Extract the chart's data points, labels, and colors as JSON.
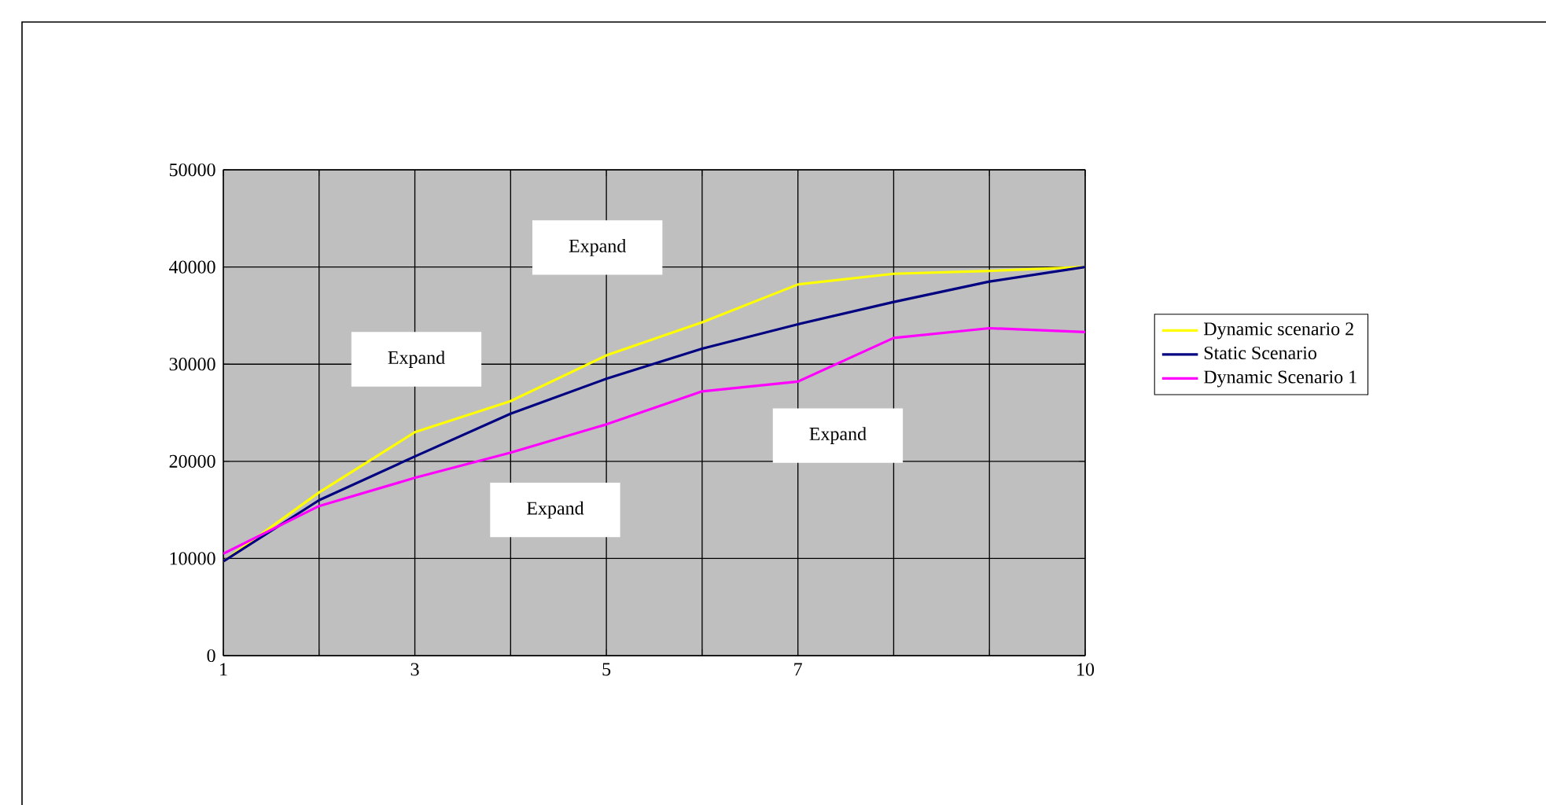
{
  "chart_data": {
    "type": "line",
    "x": [
      1,
      2,
      3,
      4,
      5,
      6,
      7,
      8,
      9,
      10
    ],
    "series": [
      {
        "name": "Dynamic scenario 2",
        "color": "#ffff00",
        "values": [
          9700,
          16800,
          23000,
          26200,
          30900,
          34300,
          38200,
          39300,
          39600,
          40000
        ]
      },
      {
        "name": "Static Scenario",
        "color": "#000080",
        "values": [
          9700,
          16000,
          20500,
          24900,
          28500,
          31600,
          34100,
          36400,
          38500,
          40000
        ]
      },
      {
        "name": "Dynamic Scenario 1",
        "color": "#ff00ff",
        "values": [
          10500,
          15400,
          18300,
          20900,
          23800,
          27200,
          28200,
          32700,
          33700,
          33300
        ]
      }
    ],
    "xlim": [
      1,
      10
    ],
    "xticks": [
      1,
      {
        "value": 2,
        "label": null
      },
      3,
      {
        "value": 4,
        "label": null
      },
      5,
      {
        "value": 6,
        "label": null
      },
      7,
      {
        "value": 8,
        "label": null
      },
      {
        "value": 9,
        "label": null
      },
      10
    ],
    "ylim": [
      0,
      50000
    ],
    "yticks": [
      0,
      10000,
      20000,
      30000,
      40000,
      50000
    ],
    "grid": true,
    "legend": "right",
    "marker": "none",
    "line_style": "solid",
    "annotations": [
      "Expand",
      "Expand",
      "Expand",
      "Expand"
    ]
  }
}
